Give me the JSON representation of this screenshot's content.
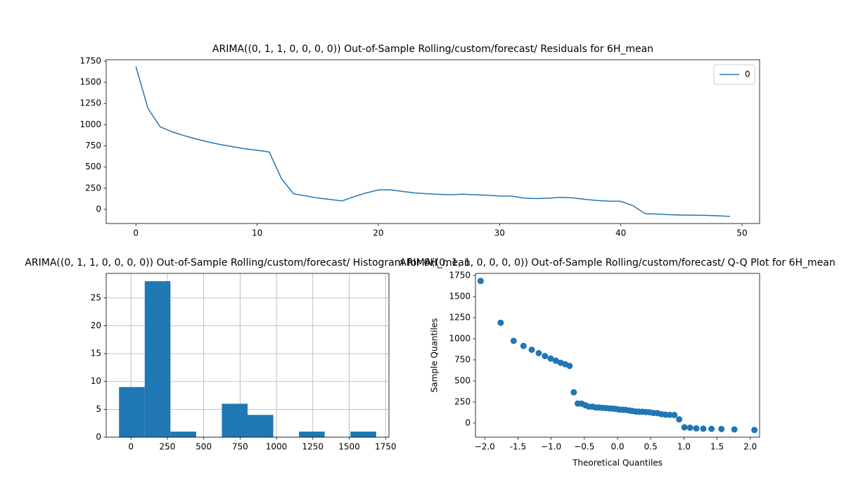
{
  "chart_data": [
    {
      "type": "line",
      "title": "ARIMA((0, 1, 1, 0, 0, 0, 0)) Out-of-Sample Rolling/custom/forecast/ Residuals for 6H_mean",
      "x": [
        0,
        1,
        2,
        3,
        4,
        5,
        6,
        7,
        8,
        9,
        10,
        11,
        12,
        13,
        14,
        15,
        16,
        17,
        18,
        19,
        20,
        21,
        22,
        23,
        24,
        25,
        26,
        27,
        28,
        29,
        30,
        31,
        32,
        33,
        34,
        35,
        36,
        37,
        38,
        39,
        40,
        41,
        42,
        43,
        44,
        45,
        46,
        47,
        48,
        49
      ],
      "series": [
        {
          "name": "0",
          "color": "#1f77b4",
          "values": [
            1685,
            1190,
            975,
            915,
            870,
            830,
            795,
            765,
            740,
            715,
            698,
            678,
            365,
            185,
            160,
            135,
            118,
            100,
            150,
            195,
            230,
            232,
            212,
            195,
            185,
            178,
            174,
            180,
            173,
            168,
            158,
            157,
            135,
            128,
            131,
            143,
            137,
            120,
            106,
            98,
            96,
            45,
            -50,
            -55,
            -62,
            -66,
            -68,
            -70,
            -75,
            -82
          ]
        }
      ],
      "xlim": [
        -2.45,
        51.45
      ],
      "ylim": [
        -166,
        1766
      ],
      "xticks": [
        0,
        10,
        20,
        30,
        40,
        50
      ],
      "yticks": [
        0,
        250,
        500,
        750,
        1000,
        1250,
        1500,
        1750
      ],
      "legend": "upper right",
      "grid": false
    },
    {
      "type": "histogram",
      "title": "ARIMA((0, 1, 1, 0, 0, 0, 0)) Out-of-Sample Rolling/custom/forecast/ Histogram for 6H_mean",
      "bins": [
        -82,
        94.7,
        271.4,
        448.1,
        624.8,
        801.5,
        978.2,
        1154.9,
        1331.6,
        1508.3,
        1685
      ],
      "values": [
        9,
        28,
        1,
        0,
        6,
        4,
        0,
        1,
        0,
        1
      ],
      "color": "#1f77b4",
      "xlim": [
        -170,
        1773
      ],
      "ylim": [
        0,
        29.4
      ],
      "xticks": [
        0,
        250,
        500,
        750,
        1000,
        1250,
        1500,
        1750
      ],
      "yticks": [
        0,
        5,
        10,
        15,
        20,
        25
      ],
      "grid": true
    },
    {
      "type": "scatter",
      "title": "ARIMA((0, 1, 1, 0, 0, 0, 0)) Out-of-Sample Rolling/custom/forecast/ Q-Q Plot for 6H_mean",
      "x_label": "Theoretical Quantiles",
      "y_label": "Sample Quantiles",
      "x": [
        -2.062,
        -1.76,
        -1.565,
        -1.416,
        -1.292,
        -1.187,
        -1.093,
        -1.007,
        -0.929,
        -0.856,
        -0.787,
        -0.722,
        -0.659,
        -0.599,
        -0.541,
        -0.485,
        -0.431,
        -0.377,
        -0.325,
        -0.274,
        -0.223,
        -0.173,
        -0.123,
        -0.074,
        -0.025,
        0.025,
        0.074,
        0.123,
        0.173,
        0.223,
        0.274,
        0.325,
        0.377,
        0.431,
        0.485,
        0.541,
        0.599,
        0.659,
        0.722,
        0.787,
        0.856,
        0.929,
        1.007,
        1.093,
        1.187,
        1.292,
        1.416,
        1.565,
        1.76,
        2.062
      ],
      "values": [
        1685,
        1190,
        975,
        915,
        870,
        830,
        795,
        765,
        740,
        715,
        698,
        678,
        365,
        232,
        230,
        212,
        195,
        195,
        185,
        185,
        180,
        178,
        174,
        173,
        168,
        160,
        158,
        157,
        150,
        143,
        137,
        135,
        135,
        131,
        128,
        120,
        118,
        106,
        100,
        98,
        96,
        45,
        -50,
        -55,
        -62,
        -66,
        -68,
        -70,
        -75,
        -82
      ],
      "color": "#1f77b4",
      "xlim": [
        -2.14,
        2.14
      ],
      "ylim": [
        -167,
        1775
      ],
      "xticks": [
        {
          "value": -2,
          "label": "−2.0"
        },
        -1.5,
        {
          "value": -1,
          "label": "−1.0"
        },
        {
          "value": -0.5,
          "label": "−0.5"
        },
        {
          "value": 0,
          "label": "0.0"
        },
        0.5,
        {
          "value": 1,
          "label": "1.0"
        },
        1.5,
        {
          "value": 2,
          "label": "2.0"
        }
      ],
      "yticks": [
        0,
        250,
        500,
        750,
        1000,
        1250,
        1500,
        1750
      ],
      "grid": false
    }
  ]
}
